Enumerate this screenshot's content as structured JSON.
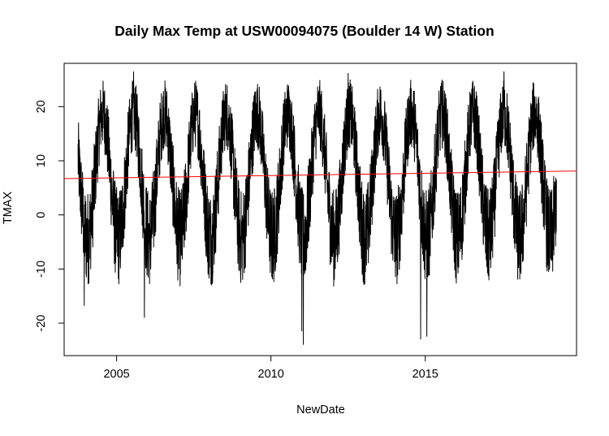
{
  "chart_data": {
    "type": "line",
    "title": "Daily Max Temp at USW00094075 (Boulder 14 W) Station",
    "xlabel": "NewDate",
    "ylabel": "TMAX",
    "xlim": [
      2003.3,
      2019.9
    ],
    "ylim": [
      -26,
      28
    ],
    "x_ticks": [
      {
        "value": 2005,
        "label": "2005"
      },
      {
        "value": 2010,
        "label": "2010"
      },
      {
        "value": 2015,
        "label": "2015"
      }
    ],
    "y_ticks": [
      {
        "value": -20,
        "label": "-20"
      },
      {
        "value": -10,
        "label": "-10"
      },
      {
        "value": 0,
        "label": "0"
      },
      {
        "value": 10,
        "label": "10"
      },
      {
        "value": 20,
        "label": "20"
      }
    ],
    "series": [
      {
        "color": "#000000",
        "x_start": 2003.75,
        "x_end": 2019.25,
        "points_per_year": 180,
        "seasonal_mean": 7.2,
        "seasonal_amplitude": 11.5,
        "peak_fraction_of_year": 0.55,
        "noise_amplitude": 6.5,
        "noted_extremes": [
          {
            "x": 2005.55,
            "y": 26.5
          },
          {
            "x": 2012.5,
            "y": 26.2
          },
          {
            "x": 2017.55,
            "y": 26.5
          },
          {
            "x": 2005.9,
            "y": -19
          },
          {
            "x": 2011.05,
            "y": -24
          },
          {
            "x": 2011.0,
            "y": -21.5
          },
          {
            "x": 2014.85,
            "y": -23
          },
          {
            "x": 2015.05,
            "y": -22.5
          },
          {
            "x": 2003.95,
            "y": -16.8
          }
        ]
      },
      {
        "color": "#ff0000",
        "type": "trend",
        "x": [
          2003.3,
          2019.9
        ],
        "y": [
          6.7,
          8.1
        ]
      }
    ],
    "grid": false,
    "legend": "none"
  }
}
